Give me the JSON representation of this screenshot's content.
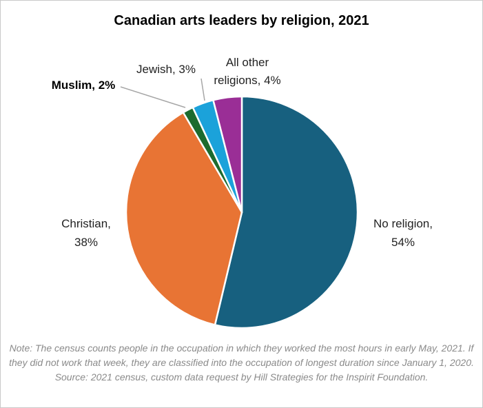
{
  "chart_data": {
    "type": "pie",
    "title": "Canadian arts leaders by religion, 2021",
    "slices": [
      {
        "label": "No religion",
        "value": 54,
        "display": [
          "No religion,",
          "54%"
        ],
        "color": "#17607f",
        "bold": false
      },
      {
        "label": "Christian",
        "value": 38,
        "display": [
          "Christian,",
          "38%"
        ],
        "color": "#e87434",
        "bold": false
      },
      {
        "label": "Muslim",
        "value": 1.5,
        "display": [
          "Muslim, 2%"
        ],
        "color": "#1c6b2e",
        "bold": true
      },
      {
        "label": "Jewish",
        "value": 3,
        "display": [
          "Jewish, 3%"
        ],
        "color": "#1ba2da",
        "bold": false
      },
      {
        "label": "All other religions",
        "value": 4,
        "display": [
          "All other",
          "religions, 4%"
        ],
        "color": "#9a2e96",
        "bold": false
      }
    ],
    "start_angle_deg": 0,
    "direction": "clockwise",
    "note": "Note: The census counts people in the occupation in which they worked the most hours in early May, 2021. If they did not work that week, they are classified into the occupation of longest duration since January 1, 2020. Source: 2021 census, custom data request by Hill Strategies for the Inspirit Foundation."
  }
}
